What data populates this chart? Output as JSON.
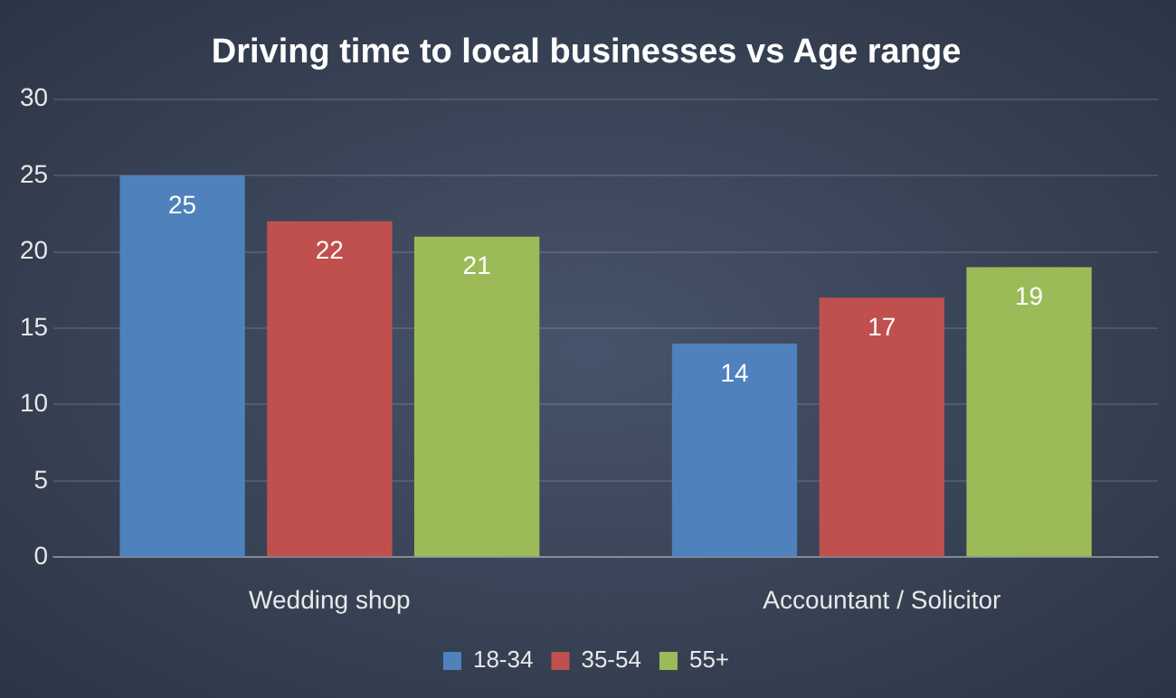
{
  "chart_data": {
    "type": "bar",
    "title": "Driving time to local businesses vs Age range",
    "categories": [
      "Wedding shop",
      "Accountant / Solicitor"
    ],
    "series": [
      {
        "name": "18-34",
        "color": "#4f81bd",
        "values": [
          25,
          14
        ]
      },
      {
        "name": "35-54",
        "color": "#c0504d",
        "values": [
          22,
          17
        ]
      },
      {
        "name": "55+",
        "color": "#9bbb59",
        "values": [
          21,
          19
        ]
      }
    ],
    "ylim": [
      0,
      30
    ],
    "yticks": [
      0,
      5,
      10,
      15,
      20,
      25,
      30
    ],
    "grid": "y",
    "legend": "bottom",
    "data_labels": true
  }
}
